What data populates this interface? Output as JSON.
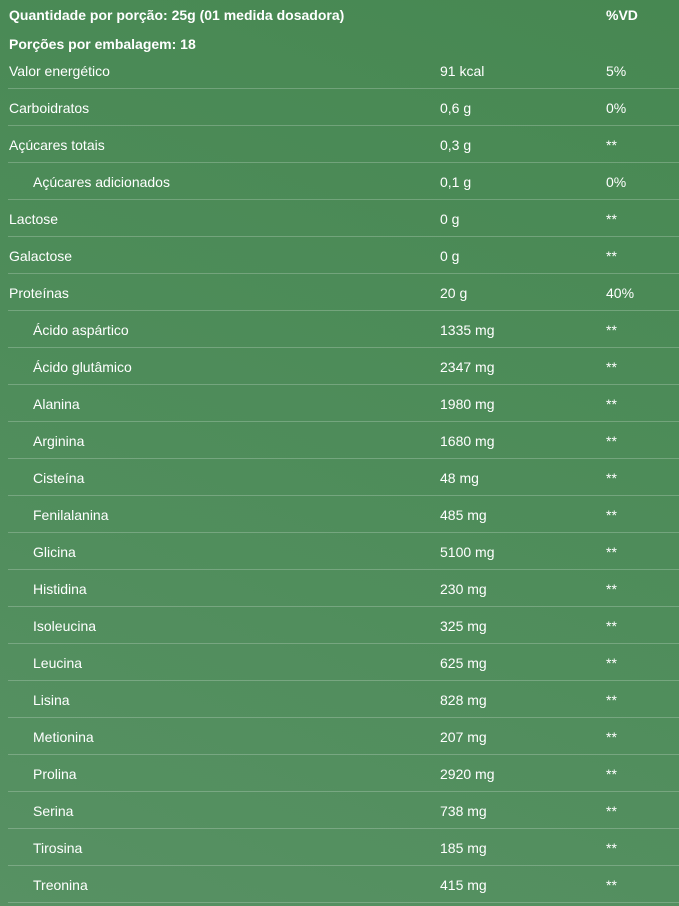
{
  "header": {
    "serving": "Quantidade por porção: 25g (01 medida dosadora)",
    "vd_label": "%VD",
    "servings_per_pack": "Porções por embalagem: 18"
  },
  "rows": [
    {
      "name": "Valor energético",
      "amount": "91 kcal",
      "vd": "5%",
      "indent": false
    },
    {
      "name": "Carboidratos",
      "amount": "0,6 g",
      "vd": "0%",
      "indent": false
    },
    {
      "name": "Açúcares totais",
      "amount": "0,3 g",
      "vd": "**",
      "indent": false
    },
    {
      "name": "Açúcares adicionados",
      "amount": "0,1 g",
      "vd": "0%",
      "indent": true
    },
    {
      "name": "Lactose",
      "amount": "0 g",
      "vd": "**",
      "indent": false
    },
    {
      "name": "Galactose",
      "amount": "0 g",
      "vd": "**",
      "indent": false
    },
    {
      "name": "Proteínas",
      "amount": "20 g",
      "vd": "40%",
      "indent": false
    },
    {
      "name": "Ácido aspártico",
      "amount": "1335 mg",
      "vd": "**",
      "indent": true
    },
    {
      "name": "Ácido glutâmico",
      "amount": "2347 mg",
      "vd": "**",
      "indent": true
    },
    {
      "name": "Alanina",
      "amount": "1980 mg",
      "vd": "**",
      "indent": true
    },
    {
      "name": "Arginina",
      "amount": "1680 mg",
      "vd": "**",
      "indent": true
    },
    {
      "name": "Cisteína",
      "amount": "48 mg",
      "vd": "**",
      "indent": true
    },
    {
      "name": "Fenilalanina",
      "amount": "485 mg",
      "vd": "**",
      "indent": true
    },
    {
      "name": "Glicina",
      "amount": "5100 mg",
      "vd": "**",
      "indent": true
    },
    {
      "name": "Histidina",
      "amount": "230 mg",
      "vd": "**",
      "indent": true
    },
    {
      "name": "Isoleucina",
      "amount": "325 mg",
      "vd": "**",
      "indent": true
    },
    {
      "name": "Leucina",
      "amount": "625 mg",
      "vd": "**",
      "indent": true
    },
    {
      "name": "Lisina",
      "amount": "828 mg",
      "vd": "**",
      "indent": true
    },
    {
      "name": "Metionina",
      "amount": "207 mg",
      "vd": "**",
      "indent": true
    },
    {
      "name": "Prolina",
      "amount": "2920 mg",
      "vd": "**",
      "indent": true
    },
    {
      "name": "Serina",
      "amount": "738 mg",
      "vd": "**",
      "indent": true
    },
    {
      "name": "Tirosina",
      "amount": "185 mg",
      "vd": "**",
      "indent": true
    },
    {
      "name": "Treonina",
      "amount": "415 mg",
      "vd": "**",
      "indent": true
    }
  ]
}
